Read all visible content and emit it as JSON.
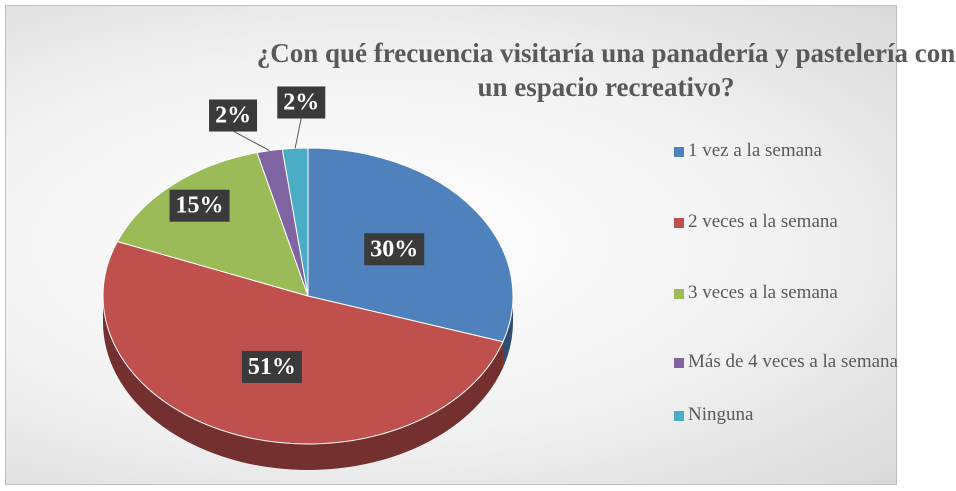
{
  "chart_data": {
    "type": "pie",
    "title": "¿Con qué frecuencia visitaría una panadería y pastelería con un espacio recreativo?",
    "categories": [
      "1 vez a la semana",
      "2 veces a la semana",
      "3 veces a la semana",
      "Más de 4 veces a la semana",
      "Ninguna"
    ],
    "values": [
      30,
      51,
      15,
      2,
      2
    ],
    "value_labels": [
      "30%",
      "51%",
      "15%",
      "2%",
      "2%"
    ],
    "colors": [
      "#4f81bd",
      "#c0504d",
      "#9bbb59",
      "#8064a2",
      "#4bacc6"
    ],
    "legend": "right"
  }
}
